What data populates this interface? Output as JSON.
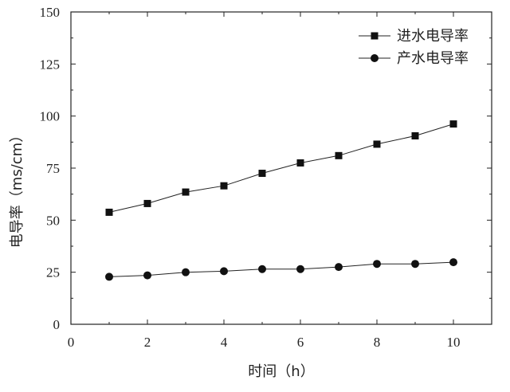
{
  "chart_data": {
    "type": "line",
    "xlabel": "时间（h）",
    "ylabel": "电导率（ms/cm）",
    "xlim": [
      0,
      11
    ],
    "ylim": [
      0,
      150
    ],
    "x_ticks": [
      0,
      2,
      4,
      6,
      8,
      10
    ],
    "y_ticks": [
      0,
      25,
      50,
      75,
      100,
      125,
      150
    ],
    "grid": false,
    "legend_position": "top-right",
    "x": [
      1,
      2,
      3,
      4,
      5,
      6,
      7,
      8,
      9,
      10
    ],
    "series": [
      {
        "name": "进水电导率",
        "marker": "square",
        "values": [
          53.8,
          58.0,
          63.5,
          66.5,
          72.5,
          77.5,
          81.0,
          86.5,
          90.5,
          96.2
        ]
      },
      {
        "name": "产水电导率",
        "marker": "circle",
        "values": [
          22.8,
          23.5,
          25.0,
          25.5,
          26.5,
          26.5,
          27.5,
          29.0,
          29.0,
          29.8
        ]
      }
    ]
  }
}
